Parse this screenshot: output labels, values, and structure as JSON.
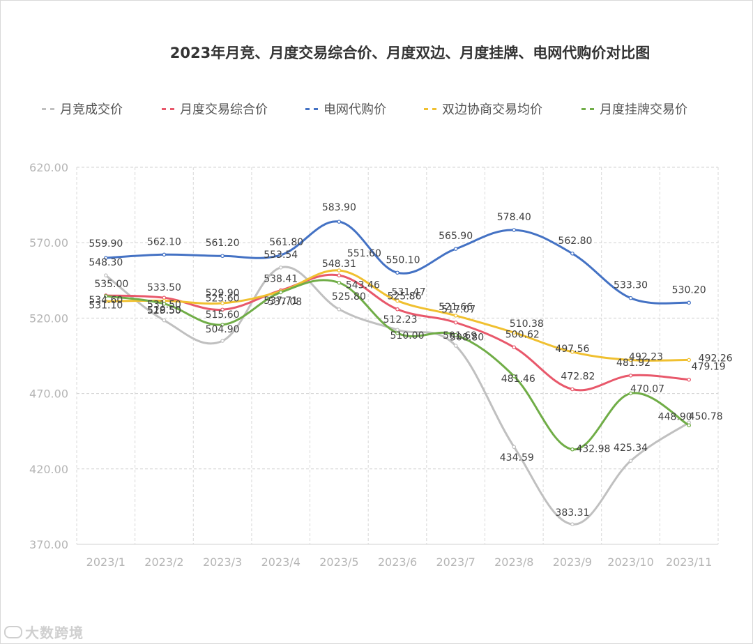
{
  "chart_data": {
    "type": "line",
    "title": "2023年月竞、月度交易综合价、月度双边、月度挂牌、电网代购价对比图",
    "xlabel": "",
    "ylabel": "",
    "ylim": [
      370,
      620
    ],
    "yticks": [
      "620.00",
      "570.00",
      "520.00",
      "470.00",
      "420.00",
      "370.00"
    ],
    "ytick_values": [
      620,
      570,
      520,
      470,
      420,
      370
    ],
    "grid": true,
    "legend_position": "top",
    "categories": [
      "2023/1",
      "2023/2",
      "2023/3",
      "2023/4",
      "2023/5",
      "2023/6",
      "2023/7",
      "2023/8",
      "2023/9",
      "2023/10",
      "2023/11"
    ],
    "series": [
      {
        "name": "月竞成交价",
        "color": "#c0c0c0",
        "values": [
          548.3,
          518.5,
          504.9,
          553.54,
          525.8,
          512.23,
          501.69,
          434.59,
          383.31,
          425.34,
          450.78
        ],
        "labels": [
          "548.30",
          "518.50",
          "504.90",
          "553.54",
          "525.80",
          "512.23",
          "501.69",
          "434.59",
          "383.31",
          "425.34",
          "450.78"
        ]
      },
      {
        "name": "月度交易综合价",
        "color": "#e8586b",
        "values": [
          535.0,
          533.5,
          525.6,
          538.41,
          548.31,
          525.86,
          517.07,
          500.62,
          472.82,
          481.92,
          479.19
        ],
        "labels": [
          "535.00",
          "533.50",
          "525.60",
          "538.41",
          "548.31",
          "525.86",
          "517.07",
          "500.62",
          "472.82",
          "481.92",
          "479.19"
        ]
      },
      {
        "name": "电网代购价",
        "color": "#4472c4",
        "values": [
          559.9,
          562.1,
          561.2,
          561.8,
          583.9,
          550.1,
          565.9,
          578.4,
          562.8,
          533.3,
          530.2
        ],
        "labels": [
          "559.90",
          "562.10",
          "561.20",
          "561.80",
          "583.90",
          "550.10",
          "565.90",
          "578.40",
          "562.80",
          "533.30",
          "530.20"
        ]
      },
      {
        "name": "双边协商交易均价",
        "color": "#f0c030",
        "values": [
          531.1,
          531.5,
          529.9,
          537.71,
          551.6,
          531.47,
          521.66,
          510.38,
          497.56,
          492.23,
          492.26
        ],
        "labels": [
          "531.10",
          "531.50",
          "529.90",
          "537.71",
          "551.60",
          "531.47",
          "521.66",
          "510.38",
          "497.56",
          "492.23",
          "492.26"
        ]
      },
      {
        "name": "月度挂牌交易价",
        "color": "#70ad47",
        "values": [
          534.6,
          529.5,
          515.6,
          537.08,
          543.46,
          510.0,
          508.8,
          481.46,
          432.98,
          470.07,
          448.9
        ],
        "labels": [
          "534.60",
          "529.50",
          "515.60",
          "537.08",
          "543.46",
          "510.00",
          "508.80",
          "481.46",
          "432.98",
          "470.07",
          "448.90"
        ]
      }
    ]
  },
  "watermark": "大数跨境"
}
